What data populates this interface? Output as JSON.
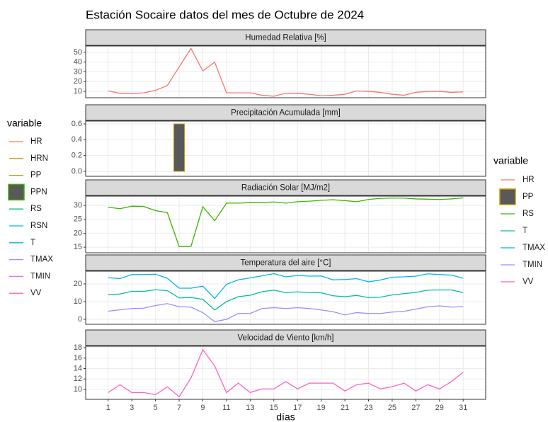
{
  "title": "Estación Socaire datos del mes de Octubre de 2024",
  "legend_left": {
    "title": "variable",
    "items": [
      {
        "name": "HR",
        "color": "#F8766D",
        "key": "line"
      },
      {
        "name": "HRN",
        "color": "#D89000",
        "key": "line"
      },
      {
        "name": "PP",
        "color": "#A3A500",
        "key": "line"
      },
      {
        "name": "PPN",
        "color": "#39B600",
        "key": "box"
      },
      {
        "name": "RS",
        "color": "#00BF7D",
        "key": "line"
      },
      {
        "name": "RSN",
        "color": "#00BFC4",
        "key": "line"
      },
      {
        "name": "T",
        "color": "#00B0F6",
        "key": "line"
      },
      {
        "name": "TMAX",
        "color": "#9590FF",
        "key": "line"
      },
      {
        "name": "TMIN",
        "color": "#E76BF3",
        "key": "line"
      },
      {
        "name": "VV",
        "color": "#FF62BC",
        "key": "line"
      }
    ]
  },
  "legend_right_title": "variable",
  "chart_data": [
    {
      "type": "line",
      "title": "Humedad Relativa [%]",
      "x": [
        1,
        2,
        3,
        4,
        5,
        6,
        7,
        8,
        9,
        10,
        11,
        12,
        13,
        14,
        15,
        16,
        17,
        18,
        19,
        20,
        21,
        22,
        23,
        24,
        25,
        26,
        27,
        28,
        29,
        30,
        31
      ],
      "series": [
        {
          "name": "HR",
          "color": "#F8766D",
          "values": [
            10.5,
            8,
            7.5,
            8.5,
            11,
            16,
            35,
            54,
            31,
            40,
            8.5,
            8.5,
            8.5,
            6,
            5,
            8,
            8,
            7,
            5.5,
            6,
            7,
            10.5,
            10,
            9,
            7,
            6,
            9,
            10,
            10,
            9,
            9.5
          ]
        }
      ],
      "xlim": [
        -0.9,
        32.9
      ],
      "xticks": [
        1,
        3,
        5,
        7,
        9,
        11,
        13,
        15,
        17,
        19,
        21,
        23,
        25,
        27,
        29,
        31
      ],
      "ylim": [
        3.5,
        56.5
      ],
      "yticks": [
        10,
        20,
        30,
        40,
        50
      ],
      "grid": true
    },
    {
      "type": "bar",
      "title": "Precipitación Acumulada [mm]",
      "x": [
        1,
        2,
        3,
        4,
        5,
        6,
        7,
        8,
        9,
        10,
        11,
        12,
        13,
        14,
        15,
        16,
        17,
        18,
        19,
        20,
        21,
        22,
        23,
        24,
        25,
        26,
        27,
        28,
        29,
        30,
        31
      ],
      "series": [
        {
          "name": "PP",
          "color": "#595959",
          "border": "#C49A00",
          "values": [
            0,
            0,
            0,
            0,
            0,
            0,
            0.6,
            0,
            0,
            0,
            0,
            0,
            0,
            0,
            0,
            0,
            0,
            0,
            0,
            0,
            0,
            0,
            0,
            0,
            0,
            0,
            0,
            0,
            0,
            0,
            0
          ]
        }
      ],
      "xlim": [
        -0.9,
        32.9
      ],
      "xticks": [
        1,
        3,
        5,
        7,
        9,
        11,
        13,
        15,
        17,
        19,
        21,
        23,
        25,
        27,
        29,
        31
      ],
      "ylim": [
        -0.063,
        0.636
      ],
      "yticks": [
        {
          "value": 0,
          "label": "0.0"
        },
        0.2,
        0.4,
        0.6
      ],
      "grid": true
    },
    {
      "type": "line",
      "title": "Radiación Solar [MJ/m2]",
      "x": [
        1,
        2,
        3,
        4,
        5,
        6,
        7,
        8,
        9,
        10,
        11,
        12,
        13,
        14,
        15,
        16,
        17,
        18,
        19,
        20,
        21,
        22,
        23,
        24,
        25,
        26,
        27,
        28,
        29,
        30,
        31
      ],
      "series": [
        {
          "name": "RS",
          "color": "#39B600",
          "values": [
            29.3,
            28.8,
            29.7,
            29.6,
            28.1,
            27.4,
            15.2,
            15.3,
            29.5,
            24.5,
            30.8,
            30.8,
            31,
            31,
            31.2,
            30.8,
            31.3,
            31.5,
            31.8,
            32,
            31.7,
            31.3,
            32.1,
            32.5,
            32.6,
            32.6,
            32.3,
            32.2,
            32.1,
            32.3,
            32.7
          ]
        }
      ],
      "xlim": [
        -0.9,
        32.9
      ],
      "xticks": [
        1,
        3,
        5,
        7,
        9,
        11,
        13,
        15,
        17,
        19,
        21,
        23,
        25,
        27,
        29,
        31
      ],
      "ylim": [
        13.0,
        33.3
      ],
      "yticks": [
        15,
        20,
        25,
        30
      ],
      "grid": true
    },
    {
      "type": "line",
      "title": "Temperatura del aire [°C]",
      "x": [
        1,
        2,
        3,
        4,
        5,
        6,
        7,
        8,
        9,
        10,
        11,
        12,
        13,
        14,
        15,
        16,
        17,
        18,
        19,
        20,
        21,
        22,
        23,
        24,
        25,
        26,
        27,
        28,
        29,
        30,
        31
      ],
      "series": [
        {
          "name": "T",
          "color": "#00BF9A",
          "values": [
            14,
            14.3,
            15.8,
            15.8,
            16.7,
            16.2,
            12.1,
            12.3,
            11.3,
            5.3,
            10,
            12.8,
            13.6,
            15.6,
            16.5,
            15.1,
            15.5,
            15.1,
            15,
            13.3,
            12.8,
            13.5,
            12.3,
            12.5,
            13.8,
            14.5,
            15.2,
            16.5,
            16.6,
            16.6,
            15.1
          ]
        },
        {
          "name": "TMAX",
          "color": "#00B4E6",
          "values": [
            23.5,
            23,
            25.3,
            25.3,
            25.5,
            23.2,
            17.6,
            17.6,
            18.7,
            11.8,
            19.8,
            22.3,
            23.4,
            24.6,
            25.8,
            24,
            24.8,
            24.4,
            24.5,
            22.3,
            22.5,
            23,
            21.2,
            22.2,
            23.8,
            24,
            24.4,
            25.7,
            25.3,
            25,
            23.2
          ]
        },
        {
          "name": "TMIN",
          "color": "#9590FF",
          "values": [
            4.6,
            5.4,
            6.1,
            6.3,
            7.8,
            8.9,
            7.1,
            6.9,
            3.8,
            -1.3,
            0,
            3.3,
            3.3,
            6.1,
            6.6,
            6.1,
            6.6,
            6.1,
            5.3,
            4.3,
            2.5,
            3.8,
            3.3,
            3.3,
            4.1,
            4.5,
            5.8,
            7.1,
            7.6,
            6.9,
            7.2
          ]
        }
      ],
      "xlim": [
        -0.9,
        32.9
      ],
      "xticks": [
        1,
        3,
        5,
        7,
        9,
        11,
        13,
        15,
        17,
        19,
        21,
        23,
        25,
        27,
        29,
        31
      ],
      "ylim": [
        -2.8,
        27.2
      ],
      "yticks": [
        0,
        10,
        20
      ],
      "grid": true
    },
    {
      "type": "line",
      "title": "Velocidad de Viento [km/h]",
      "xlabel": "días",
      "x": [
        1,
        2,
        3,
        4,
        5,
        6,
        7,
        8,
        9,
        10,
        11,
        12,
        13,
        14,
        15,
        16,
        17,
        18,
        19,
        20,
        21,
        22,
        23,
        24,
        25,
        26,
        27,
        28,
        29,
        30,
        31
      ],
      "series": [
        {
          "name": "VV",
          "color": "#FF61C3",
          "values": [
            9.4,
            10.9,
            9.4,
            9.4,
            9.0,
            10.5,
            8.6,
            12.2,
            17.6,
            14.5,
            9.4,
            11.2,
            9.4,
            10.1,
            10.1,
            11.5,
            10.1,
            11.2,
            11.2,
            11.2,
            9.7,
            10.9,
            11.2,
            10.1,
            10.5,
            11.2,
            9.7,
            10.9,
            10.1,
            11.5,
            13.3
          ]
        }
      ],
      "xlim": [
        -0.9,
        32.9
      ],
      "xticks": [
        1,
        3,
        5,
        7,
        9,
        11,
        13,
        15,
        17,
        19,
        21,
        23,
        25,
        27,
        29,
        31
      ],
      "ylim": [
        8.1,
        18.27
      ],
      "yticks": [
        10,
        12,
        14,
        16,
        18
      ],
      "grid": true
    }
  ]
}
